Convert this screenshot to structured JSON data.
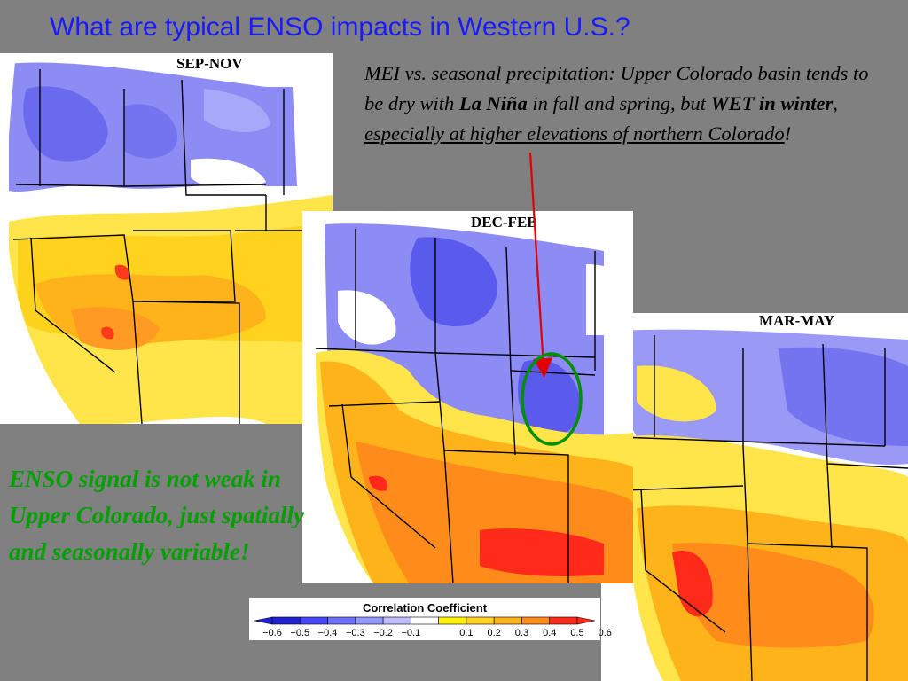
{
  "title": "What are typical ENSO impacts in Western U.S.?",
  "maps": [
    {
      "id": "sep-nov",
      "label": "SEP-NOV"
    },
    {
      "id": "dec-feb",
      "label": "DEC-FEB"
    },
    {
      "id": "mar-may",
      "label": "MAR-MAY"
    }
  ],
  "description": {
    "part1": "MEI vs. seasonal precipitation: Upper Colorado basin tends to be dry with ",
    "la_nina": "La Niña",
    "part2": " in fall and spring, but ",
    "wet_winter": "WET in winter",
    "part3": ", ",
    "underlined": "especially at higher elevations of northern Colorado",
    "part4": "!"
  },
  "enso_note": "ENSO signal is not weak in Upper Colorado, just spatially and seasonally variable!",
  "colorbar": {
    "title": "Correlation Coefficient",
    "ticks": [
      "−0.6",
      "−0.5",
      "−0.4",
      "−0.3",
      "−0.2",
      "−0.1",
      "0.1",
      "0.2",
      "0.3",
      "0.4",
      "0.5",
      "0.6"
    ],
    "colors": [
      "#1f1fd6",
      "#4646ff",
      "#6e6eff",
      "#9696ff",
      "#bebeff",
      "#ffffff",
      "#fff200",
      "#ffd21e",
      "#ffb31a",
      "#ff8c1a",
      "#ff2a1a"
    ]
  },
  "colors": {
    "title": "#1a1aff",
    "note": "#00a000",
    "arrow": "#e00000",
    "highlight_circle": "#009000"
  }
}
